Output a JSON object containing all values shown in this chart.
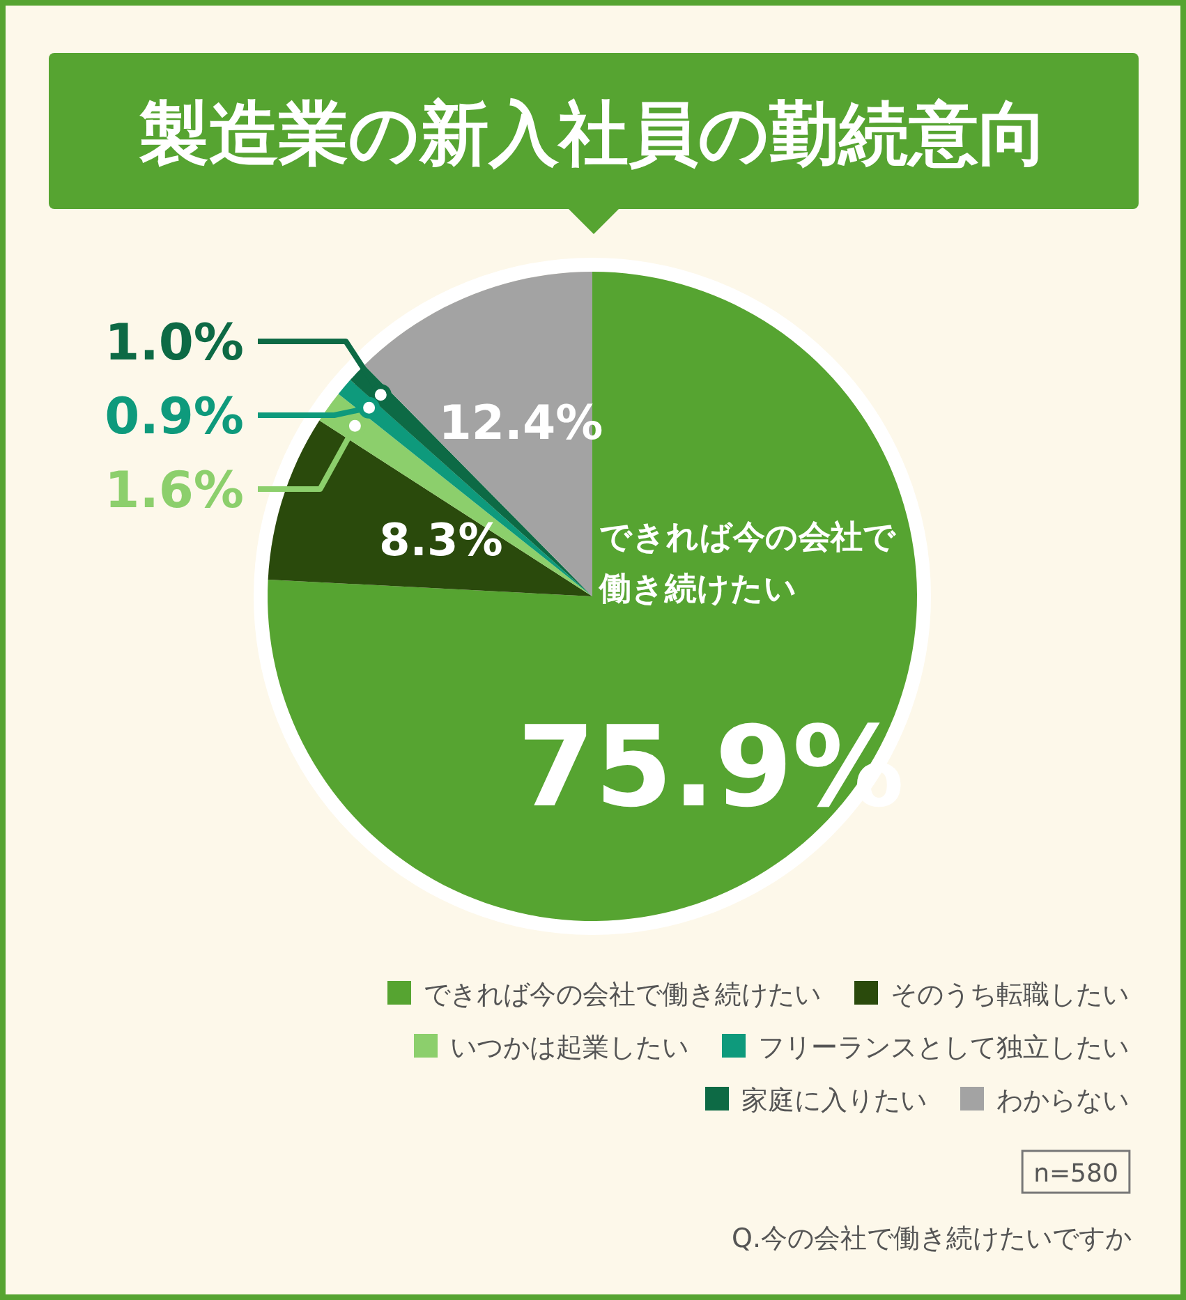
{
  "chart_data": {
    "type": "pie",
    "title": "製造業の新入社員の勤続意向",
    "categories": [
      "できれば今の会社で働き続けたい",
      "そのうち転職したい",
      "いつかは起業したい",
      "フリーランスとして独立したい",
      "家庭に入りたい",
      "わからない"
    ],
    "values": [
      75.9,
      8.3,
      1.6,
      0.9,
      1.0,
      12.4
    ],
    "colors": [
      "#56a431",
      "#2a4a0c",
      "#8ccf6c",
      "#0e9a7c",
      "#0d6a45",
      "#a3a3a3"
    ],
    "value_labels": [
      "75.9%",
      "8.3%",
      "1.6%",
      "0.9%",
      "1.0%",
      "12.4%"
    ],
    "legend": "bottom right",
    "annotations": [
      "n=580",
      "Q.今の会社で働き続けたいですか"
    ]
  }
}
